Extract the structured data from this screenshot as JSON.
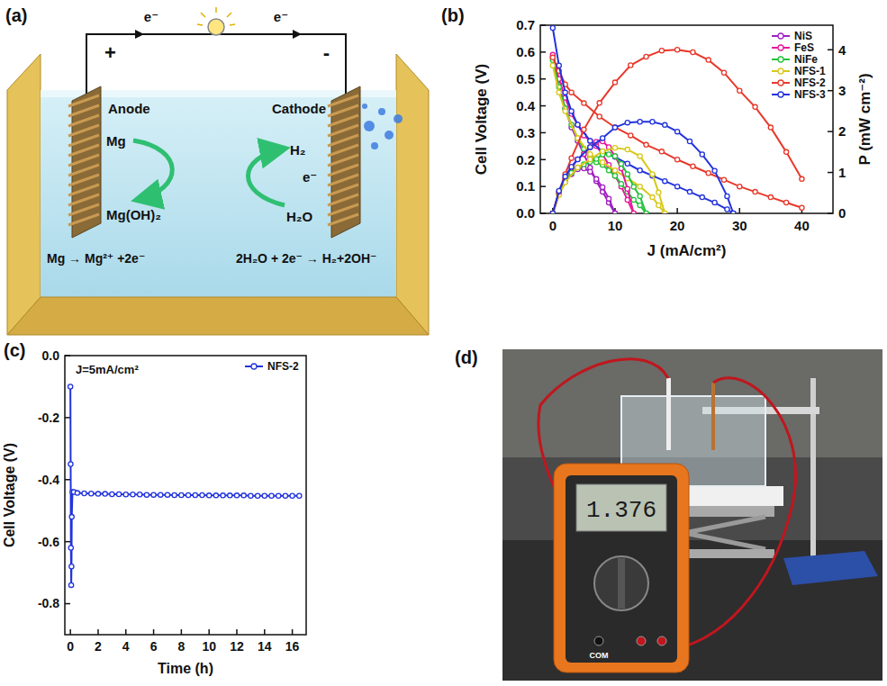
{
  "diagram": {
    "label": "(a)",
    "positive": "+",
    "negative": "-",
    "electron_left": "e⁻",
    "electron_right": "e⁻",
    "anode": "Anode",
    "cathode": "Cathode",
    "anode_in": "Mg",
    "anode_out": "Mg(OH)₂",
    "cathode_out": "H₂",
    "cathode_electron": "e⁻",
    "cathode_in": "H₂O",
    "anode_reaction": "Mg → Mg²⁺ +2e⁻",
    "cathode_reaction": "2H₂O + 2e⁻ → H₂+2OH⁻"
  },
  "chart_data": [
    {
      "panel_label": "(b)",
      "type": "line",
      "x_label": "J (mA/cm²)",
      "y_label": "Cell Voltage (V)",
      "y2_label": "P (mW cm⁻²)",
      "xlim": [
        -2,
        45
      ],
      "xticks": [
        0,
        10,
        20,
        30,
        40
      ],
      "ylim": [
        0,
        0.7
      ],
      "yticks": [
        {
          "value": 0,
          "label": "0.0"
        },
        0.1,
        0.2,
        0.3,
        0.4,
        0.5,
        0.6,
        0.7
      ],
      "y2lim": [
        0,
        4.6
      ],
      "y2ticks": [
        0,
        1,
        2,
        3,
        4
      ],
      "legend": "upper right",
      "series": [
        {
          "name": "NiS",
          "color": "#a01fc2",
          "marker": "circle",
          "x": [
            0,
            1,
            2,
            3,
            4,
            5,
            6,
            7,
            8,
            9,
            10
          ],
          "values": [
            0.58,
            0.48,
            0.39,
            0.32,
            0.27,
            0.22,
            0.17,
            0.12,
            0.08,
            0.04,
            0.0
          ]
        },
        {
          "name": "FeS",
          "color": "#e6199b",
          "marker": "circle",
          "x": [
            0,
            1,
            2,
            3,
            4,
            5,
            6,
            7,
            8,
            9,
            10,
            11,
            12,
            13
          ],
          "values": [
            0.59,
            0.5,
            0.43,
            0.37,
            0.33,
            0.29,
            0.27,
            0.25,
            0.22,
            0.18,
            0.14,
            0.1,
            0.05,
            0.0
          ]
        },
        {
          "name": "NiFe",
          "color": "#22c33a",
          "marker": "circle",
          "x": [
            0,
            1,
            2,
            3,
            4,
            5,
            6,
            7,
            8,
            9,
            10,
            11,
            12,
            13,
            14,
            15
          ],
          "values": [
            0.57,
            0.47,
            0.39,
            0.33,
            0.28,
            0.24,
            0.21,
            0.19,
            0.18,
            0.16,
            0.14,
            0.11,
            0.08,
            0.05,
            0.03,
            0.0
          ]
        },
        {
          "name": "NFS-1",
          "color": "#d8c81a",
          "marker": "circle",
          "x": [
            0,
            1,
            2,
            4,
            6,
            8,
            10,
            12,
            14,
            16,
            17,
            18
          ],
          "values": [
            0.55,
            0.45,
            0.38,
            0.28,
            0.22,
            0.19,
            0.16,
            0.13,
            0.1,
            0.06,
            0.03,
            0.0
          ]
        },
        {
          "name": "NFS-2",
          "color": "#e8392b",
          "marker": "circle",
          "x": [
            0,
            1,
            2,
            3,
            5,
            7.5,
            10,
            12.5,
            15,
            17.5,
            20,
            22.5,
            25,
            27.5,
            30,
            32.5,
            35,
            37.5,
            40
          ],
          "values": [
            0.58,
            0.53,
            0.48,
            0.45,
            0.41,
            0.36,
            0.32,
            0.29,
            0.255,
            0.23,
            0.2,
            0.175,
            0.15,
            0.125,
            0.1,
            0.08,
            0.06,
            0.04,
            0.021
          ]
        },
        {
          "name": "NFS-3",
          "color": "#2233dd",
          "marker": "circle",
          "x": [
            0,
            1,
            2,
            3,
            4,
            6,
            8,
            10,
            12,
            14,
            16,
            18,
            20,
            22,
            24,
            26,
            28,
            29
          ],
          "values": [
            0.69,
            0.55,
            0.45,
            0.38,
            0.33,
            0.27,
            0.23,
            0.21,
            0.185,
            0.16,
            0.14,
            0.12,
            0.1,
            0.08,
            0.06,
            0.04,
            0.015,
            0.0
          ]
        },
        {
          "color": "#a01fc2",
          "axis": "y2",
          "marker": "circle",
          "x": [
            0,
            1,
            2,
            3,
            4,
            5,
            6,
            7,
            8,
            9,
            10
          ],
          "values": [
            0,
            0.48,
            0.78,
            0.96,
            1.08,
            1.1,
            1.02,
            0.84,
            0.64,
            0.36,
            0
          ]
        },
        {
          "color": "#e6199b",
          "axis": "y2",
          "marker": "circle",
          "x": [
            0,
            1,
            2,
            3,
            4,
            5,
            6,
            7,
            8,
            9,
            10,
            11,
            12,
            13
          ],
          "values": [
            0,
            0.5,
            0.86,
            1.11,
            1.32,
            1.45,
            1.62,
            1.75,
            1.76,
            1.62,
            1.4,
            1.1,
            0.6,
            0
          ]
        },
        {
          "color": "#22c33a",
          "axis": "y2",
          "marker": "circle",
          "x": [
            0,
            1,
            2,
            3,
            4,
            5,
            6,
            7,
            8,
            9,
            10,
            11,
            12,
            13,
            14,
            15
          ],
          "values": [
            0,
            0.47,
            0.78,
            0.99,
            1.12,
            1.2,
            1.26,
            1.33,
            1.44,
            1.44,
            1.4,
            1.21,
            0.96,
            0.65,
            0.42,
            0
          ]
        },
        {
          "color": "#d8c81a",
          "axis": "y2",
          "marker": "circle",
          "x": [
            0,
            1,
            2,
            4,
            6,
            8,
            10,
            12,
            14,
            16,
            17,
            18
          ],
          "values": [
            0,
            0.45,
            0.76,
            1.12,
            1.32,
            1.52,
            1.6,
            1.56,
            1.4,
            0.96,
            0.51,
            0
          ]
        },
        {
          "color": "#e8392b",
          "axis": "y2",
          "marker": "circle",
          "x": [
            0,
            1,
            2,
            3,
            5,
            7.5,
            10,
            12.5,
            15,
            17.5,
            20,
            22.5,
            25,
            27.5,
            30,
            32.5,
            35,
            37.5,
            40
          ],
          "values": [
            0,
            0.53,
            0.96,
            1.35,
            2.05,
            2.7,
            3.2,
            3.62,
            3.83,
            3.98,
            4.0,
            3.94,
            3.75,
            3.44,
            3.0,
            2.6,
            2.1,
            1.5,
            0.84
          ]
        },
        {
          "color": "#2233dd",
          "axis": "y2",
          "marker": "circle",
          "x": [
            0,
            1,
            2,
            3,
            4,
            6,
            8,
            10,
            12,
            14,
            16,
            18,
            20,
            22,
            24,
            26,
            28,
            29
          ],
          "values": [
            0,
            0.55,
            0.9,
            1.14,
            1.32,
            1.62,
            1.84,
            2.1,
            2.22,
            2.24,
            2.24,
            2.16,
            2.0,
            1.76,
            1.44,
            1.04,
            0.42,
            0
          ]
        }
      ]
    },
    {
      "panel_label": "(c)",
      "type": "line",
      "x_label": "Time (h)",
      "y_label": "Cell Voltage (V)",
      "annotation": "J=5mA/cm²",
      "xlim": [
        -0.4,
        17
      ],
      "xticks": [
        0,
        2,
        4,
        6,
        8,
        10,
        12,
        14,
        16
      ],
      "ylim": [
        -0.9,
        0
      ],
      "yticks": [
        {
          "value": 0,
          "label": "0.0"
        },
        -0.2,
        -0.4,
        -0.6,
        -0.8
      ],
      "legend": "upper right",
      "series": [
        {
          "name": "NFS-2",
          "color": "#2233dd",
          "marker": "circle",
          "x": [
            0,
            0.02,
            0.04,
            0.06,
            0.08,
            0.1,
            0.15,
            0.25,
            0.5,
            1,
            1.5,
            2,
            2.5,
            3,
            3.5,
            4,
            4.5,
            5,
            5.5,
            6,
            6.5,
            7,
            7.5,
            8,
            8.5,
            9,
            9.5,
            10,
            10.5,
            11,
            11.5,
            12,
            12.5,
            13,
            13.5,
            14,
            14.5,
            15,
            15.5,
            16,
            16.5
          ],
          "values": [
            -0.1,
            -0.35,
            -0.62,
            -0.74,
            -0.68,
            -0.52,
            -0.44,
            -0.44,
            -0.443,
            -0.444,
            -0.445,
            -0.446,
            -0.446,
            -0.447,
            -0.447,
            -0.448,
            -0.448,
            -0.448,
            -0.449,
            -0.449,
            -0.449,
            -0.449,
            -0.45,
            -0.45,
            -0.45,
            -0.45,
            -0.45,
            -0.451,
            -0.451,
            -0.451,
            -0.451,
            -0.451,
            -0.451,
            -0.452,
            -0.452,
            -0.452,
            -0.452,
            -0.452,
            -0.452,
            -0.452,
            -0.452
          ]
        }
      ]
    }
  ],
  "photo": {
    "label": "(d)",
    "display": "1.376",
    "port": "COM"
  }
}
